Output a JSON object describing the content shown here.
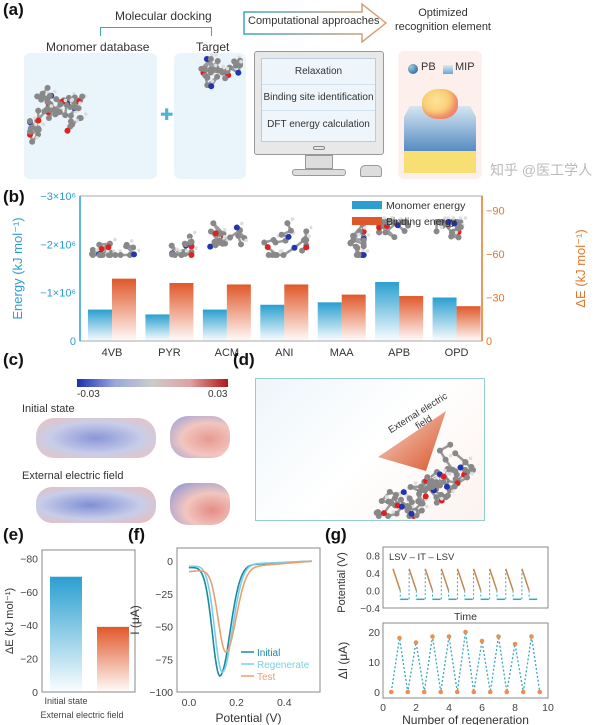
{
  "panel_a": {
    "label": "(a)",
    "docking": "Molecular docking",
    "monomer_db": "Monomer database",
    "target": "Target",
    "arrow": "Computational approaches",
    "optimized": "Optimized recognition element",
    "steps": [
      "Relaxation",
      "Binding site identification",
      "DFT energy calculation"
    ],
    "legend_pb": "PB",
    "legend_mip": "MIP"
  },
  "panel_c": {
    "label": "(c)",
    "cbar_min": "-0.03",
    "cbar_max": "0.03",
    "initial": "Initial state",
    "field": "External electric field"
  },
  "panel_d": {
    "label": "(d)",
    "field_label": "External electric field"
  },
  "labels": {
    "b": "(b)",
    "e": "(e)",
    "f": "(f)",
    "g": "(g)"
  },
  "colors": {
    "blue": "#2a9fd0",
    "orange": "#e0582a",
    "teal": "#1b8aa0",
    "light_blue": "#7ccfe6",
    "tan": "#e8a070"
  },
  "chart_data": [
    {
      "id": "b",
      "type": "bar",
      "categories": [
        "4VB",
        "PYR",
        "ACM",
        "ANI",
        "MAA",
        "APB",
        "OPD"
      ],
      "ylabel": "Energy (kJ mol⁻¹)",
      "y2label": "ΔE (kJ mol⁻¹)",
      "yticks": [
        "0",
        "−1×10⁶",
        "−2×10⁶",
        "−3×10⁶"
      ],
      "ylim": [
        0,
        -3000000
      ],
      "y2ticks": [
        "0",
        "−30",
        "−60",
        "−90"
      ],
      "y2lim": [
        0,
        -100
      ],
      "legend": "top-right",
      "series": [
        {
          "name": "Monomer energy",
          "axis": "left",
          "values": [
            -650000,
            -550000,
            -650000,
            -750000,
            -800000,
            -1220000,
            -900000
          ]
        },
        {
          "name": "Binding energy",
          "axis": "right",
          "values": [
            -43,
            -40,
            -39,
            -39,
            -32,
            -31,
            -24
          ]
        }
      ]
    },
    {
      "id": "e",
      "type": "bar",
      "categories": [
        "Initial state",
        "External electric field"
      ],
      "ylabel": "ΔE (kJ mol⁻¹)",
      "ylim": [
        0,
        -85
      ],
      "yticks": [
        "0",
        "−20",
        "−40",
        "−60",
        "−80"
      ],
      "values": [
        -69,
        -39
      ]
    },
    {
      "id": "f",
      "type": "line",
      "xlabel": "Potential (V)",
      "ylabel": "I (μA)",
      "xlim": [
        -0.05,
        0.55
      ],
      "ylim": [
        -100,
        10
      ],
      "xticks": [
        "0.0",
        "0.2",
        "0.4"
      ],
      "yticks": [
        "0",
        "−25",
        "−50",
        "−75",
        "−100"
      ],
      "legend": "bottom-right",
      "series": [
        {
          "name": "Initial",
          "peak_x": 0.13,
          "peak_y": -84,
          "start_y": -5
        },
        {
          "name": "Regenerate",
          "peak_x": 0.14,
          "peak_y": -82,
          "start_y": -4
        },
        {
          "name": "Test",
          "peak_x": 0.155,
          "peak_y": -64,
          "start_y": -8
        }
      ]
    },
    {
      "id": "g_top",
      "type": "line",
      "annotation": "LSV – IT – LSV",
      "xlabel": "Time",
      "ylabel": "Potential (V)",
      "ylim": [
        -0.4,
        1.0
      ],
      "yticks": [
        "0.8",
        "0.4",
        "0.0",
        "−0.4"
      ],
      "cycles": 9,
      "lsv_range": [
        0.5,
        0.0
      ],
      "it_potential": -0.2
    },
    {
      "id": "g_bottom",
      "type": "scatter",
      "xlabel": "Number of regeneration",
      "ylabel": "ΔI (μA)",
      "xlim": [
        0,
        10
      ],
      "ylim": [
        -2,
        23
      ],
      "xticks": [
        "0",
        "2",
        "4",
        "6",
        "8",
        "10"
      ],
      "yticks": [
        "0",
        "10",
        "20"
      ],
      "x": [
        0.5,
        1,
        1.5,
        2,
        2.5,
        3,
        3.5,
        4,
        4.5,
        5,
        5.5,
        6,
        6.5,
        7,
        7.5,
        8,
        8.5,
        9,
        9.5
      ],
      "y": [
        0,
        18,
        0,
        16.5,
        0,
        18.5,
        0,
        18.5,
        0,
        20,
        0,
        17,
        0,
        18.5,
        0,
        16,
        0,
        18.5,
        0
      ]
    }
  ],
  "watermark": "知乎 @医工学人"
}
